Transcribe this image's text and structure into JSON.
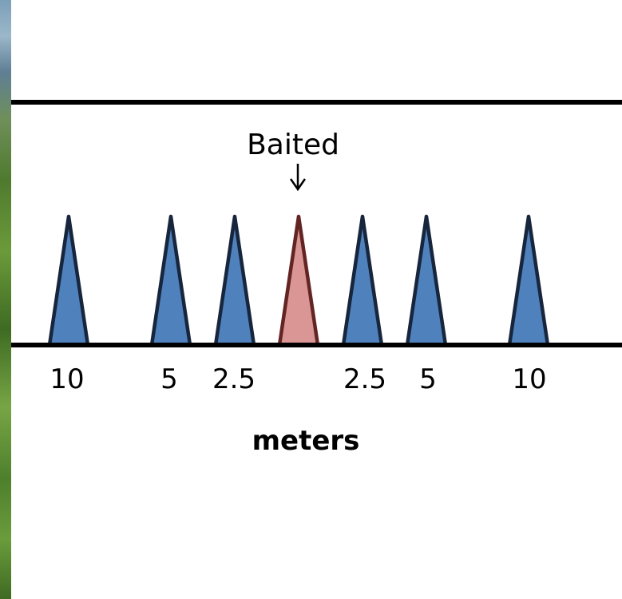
{
  "diagram": {
    "baited_label": "Baited",
    "unit_label": "meters",
    "colors": {
      "trap_fill": "#4f81bd",
      "trap_stroke": "#17263d",
      "baited_fill": "#d99694",
      "baited_stroke": "#632523",
      "line": "#000000"
    },
    "traps": [
      {
        "distance": "10",
        "side": "left",
        "baited": false
      },
      {
        "distance": "5",
        "side": "left",
        "baited": false
      },
      {
        "distance": "2.5",
        "side": "left",
        "baited": false
      },
      {
        "distance": "",
        "side": "center",
        "baited": true
      },
      {
        "distance": "2.5",
        "side": "right",
        "baited": false
      },
      {
        "distance": "5",
        "side": "right",
        "baited": false
      },
      {
        "distance": "10",
        "side": "right",
        "baited": false
      }
    ]
  }
}
